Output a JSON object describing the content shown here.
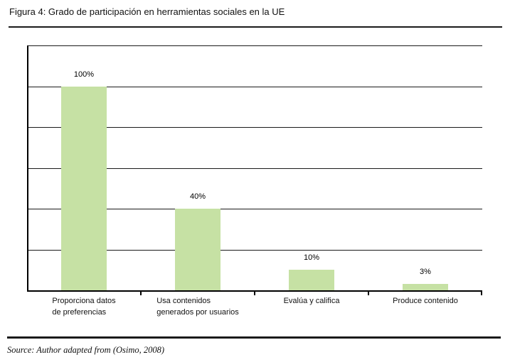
{
  "figure": {
    "title": "Figura 4: Grado de participación en herramientas sociales en la UE",
    "source": "Source: Author adapted from (Osimo, 2008)"
  },
  "chart_data": {
    "type": "bar",
    "title": "Figura 4: Grado de participación en herramientas sociales en la UE",
    "categories": [
      "Proporciona datos\nde preferencias",
      "Usa contenidos\ngenerados por usuarios",
      "Evalúa y califica",
      "Produce contenido"
    ],
    "values": [
      100,
      40,
      10,
      3
    ],
    "value_labels": [
      "100%",
      "40%",
      "10%",
      "3%"
    ],
    "xlabel": "",
    "ylabel": "",
    "ylim": [
      0,
      120
    ],
    "grid_step": 20,
    "grid": "horizontal black gridlines every 20%, no y-axis tick labels",
    "legend": false,
    "bar_color": "#c6e1a4"
  }
}
